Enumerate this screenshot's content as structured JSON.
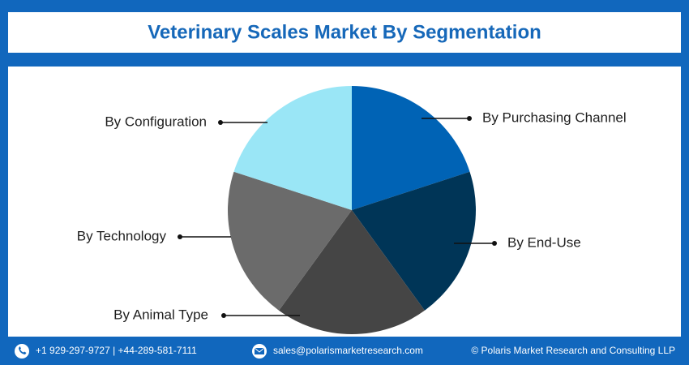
{
  "chart_data": {
    "type": "pie",
    "title": "Veterinary Scales Market By Segmentation",
    "categories": [
      "By Purchasing Channel",
      "By End-Use",
      "By Animal Type",
      "By Technology",
      "By Configuration"
    ],
    "values": [
      20,
      20,
      20,
      20,
      20
    ],
    "colors": [
      "#0063b5",
      "#003557",
      "#454545",
      "#6b6b6b",
      "#9ae6f6"
    ]
  },
  "footer": {
    "phone": "+1 929-297-9727 | +44-289-581-7111",
    "email": "sales@polarismarketresearch.com",
    "copyright": "© Polaris Market Research and Consulting LLP"
  }
}
